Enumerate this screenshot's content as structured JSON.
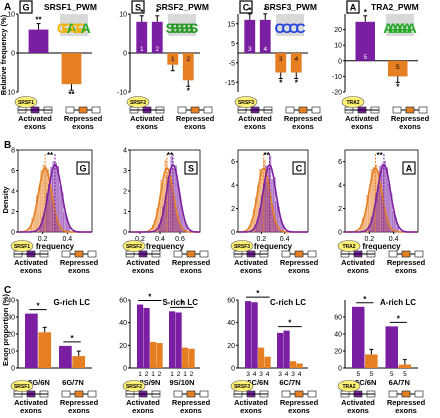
{
  "chart_data": [
    {
      "row": "A",
      "type": "bar",
      "ylabel": "Relative frequency (%)",
      "categories": [
        "Activated exons",
        "Repressed exons"
      ],
      "panels": [
        {
          "letter": "G",
          "title": "SRSF1_PWM",
          "motif": "GGAGGA",
          "protein": "SRSF1",
          "values": [
            6,
            -8
          ],
          "sig": [
            "**",
            "**"
          ],
          "bar_labels": [],
          "ylim": [
            -10,
            10
          ],
          "yticks": [
            -10,
            0,
            10
          ]
        },
        {
          "letter": "S",
          "title": "SRSF2_PWM",
          "motif": "SSSSSS",
          "protein": "SRSF2",
          "values": [
            8,
            8,
            -3,
            -7
          ],
          "sig": [
            "*",
            "*",
            "",
            "*"
          ],
          "bar_labels": [
            "1",
            "2",
            "1",
            "2"
          ],
          "ylim": [
            -10,
            10
          ],
          "yticks": [
            -10,
            0,
            10
          ]
        },
        {
          "letter": "C",
          "title": "SRSF3_PWM",
          "motif": "CCCC",
          "protein": "SRSF3",
          "values": [
            17,
            17,
            -10,
            -10
          ],
          "sig": [
            "*",
            "*",
            "*",
            "*"
          ],
          "bar_labels": [
            "3",
            "4",
            "3",
            "4"
          ],
          "ylim": [
            -20,
            20
          ],
          "yticks": [
            -15,
            -5,
            5,
            15
          ]
        },
        {
          "letter": "A",
          "title": "TRA2_PWM",
          "motif": "AAAAAA",
          "protein": "TRA2",
          "values": [
            25,
            -10
          ],
          "sig": [
            "*",
            "*"
          ],
          "bar_labels": [
            "5",
            "5"
          ],
          "ylim": [
            -20,
            30
          ],
          "yticks": [
            -20,
            -10,
            0,
            10,
            20
          ]
        }
      ]
    },
    {
      "row": "B",
      "type": "histogram",
      "xlabel": "frequency",
      "ylabel": "Density",
      "categories": [
        "Activated exons",
        "Repressed exons"
      ],
      "panels": [
        {
          "letter": "G",
          "protein": "SRSF1",
          "xlim": [
            0,
            0.6
          ],
          "ylim": [
            0,
            8
          ],
          "xticks": [
            "0.2",
            "0.4"
          ],
          "yticks": [
            "0",
            "2",
            "4",
            "6",
            "8"
          ],
          "sig": "**",
          "orange_mean": 0.22,
          "purple_mean": 0.3
        },
        {
          "letter": "S",
          "protein": "SRSF2",
          "xlim": [
            0.1,
            0.8
          ],
          "ylim": [
            0,
            4
          ],
          "xticks": [
            "0.2",
            "0.4",
            "0.6"
          ],
          "yticks": [
            "0",
            "1",
            "2",
            "3",
            "4"
          ],
          "sig": "**",
          "orange_mean": 0.47,
          "purple_mean": 0.53
        },
        {
          "letter": "C",
          "protein": "SRSF3",
          "xlim": [
            0,
            0.6
          ],
          "ylim": [
            0,
            7
          ],
          "xticks": [
            "0.2",
            "0.4"
          ],
          "yticks": [
            "0",
            "2",
            "4",
            "6"
          ],
          "sig": "**",
          "orange_mean": 0.22,
          "purple_mean": 0.27
        },
        {
          "letter": "A",
          "protein": "TRA2",
          "xlim": [
            0,
            0.6
          ],
          "ylim": [
            0,
            7
          ],
          "xticks": [
            "0.2",
            "0.4"
          ],
          "yticks": [
            "0",
            "2",
            "4",
            "6"
          ],
          "sig": "**",
          "orange_mean": 0.25,
          "purple_mean": 0.32
        }
      ]
    },
    {
      "row": "C",
      "type": "bar",
      "ylabel": "Exon proportion (%)",
      "categories": [
        "Activated exons",
        "Repressed exons"
      ],
      "panels": [
        {
          "title": "G-rich LC",
          "protein": "SRSF1",
          "groups": [
            {
              "label": "5G/6N",
              "values": [
                32,
                21
              ],
              "colors": [
                "purple",
                "orange"
              ],
              "bar_labels": []
            },
            {
              "label": "6G/7N",
              "values": [
                13,
                7
              ],
              "colors": [
                "purple",
                "orange"
              ],
              "bar_labels": []
            }
          ],
          "ylim": [
            0,
            40
          ],
          "yticks": [
            0,
            10,
            20,
            30,
            40
          ],
          "sig": [
            "*",
            "*"
          ]
        },
        {
          "title": "S-rich LC",
          "protein": "SRSF2",
          "groups": [
            {
              "label": "8S/9N",
              "values": [
                56,
                53,
                23,
                22
              ],
              "colors": [
                "purple",
                "purple",
                "orange",
                "orange"
              ],
              "bar_labels": [
                "1",
                "2",
                "1",
                "2"
              ]
            },
            {
              "label": "9S/10N",
              "values": [
                50,
                49,
                18,
                17
              ],
              "colors": [
                "purple",
                "purple",
                "orange",
                "orange"
              ],
              "bar_labels": [
                "1",
                "2",
                "1",
                "2"
              ]
            }
          ],
          "ylim": [
            0,
            60
          ],
          "yticks": [
            0,
            20,
            40,
            60
          ],
          "sig": [
            "*",
            "*"
          ]
        },
        {
          "title": "C-rich LC",
          "protein": "SRSF3",
          "groups": [
            {
              "label": "5C/6N",
              "values": [
                59,
                58,
                18,
                10
              ],
              "colors": [
                "purple",
                "purple",
                "orange",
                "orange"
              ],
              "bar_labels": [
                "3",
                "4",
                "3",
                "4"
              ]
            },
            {
              "label": "6C/7N",
              "values": [
                31,
                33,
                6,
                4
              ],
              "colors": [
                "purple",
                "purple",
                "orange",
                "orange"
              ],
              "bar_labels": [
                "3",
                "4",
                "3",
                "4"
              ]
            }
          ],
          "ylim": [
            0,
            60
          ],
          "yticks": [
            0,
            20,
            40,
            60
          ],
          "sig": [
            "*",
            "*"
          ]
        },
        {
          "title": "A-rich LC",
          "protein": "TRA2",
          "groups": [
            {
              "label": "5C/6N",
              "values": [
                72,
                16
              ],
              "colors": [
                "purple",
                "orange"
              ],
              "bar_labels": [
                "5",
                "5"
              ]
            },
            {
              "label": "6A/7N",
              "values": [
                49,
                4
              ],
              "colors": [
                "purple",
                "orange"
              ],
              "bar_labels": [
                "5",
                "5"
              ]
            }
          ],
          "ylim": [
            0,
            80
          ],
          "yticks": [
            0,
            20,
            40,
            60
          ],
          "sig": [
            "*",
            "*"
          ]
        }
      ]
    }
  ],
  "colors": {
    "purple": "#7b1fa2",
    "orange": "#e67e22",
    "protein": "#fff176",
    "logo_bg": "#d9d9d9",
    "logo_G": "#f0b400",
    "logo_A": "#22aa22",
    "logo_C": "#2244dd",
    "logo_S": "#229922",
    "axis": "#000000",
    "significance": "#000000"
  }
}
